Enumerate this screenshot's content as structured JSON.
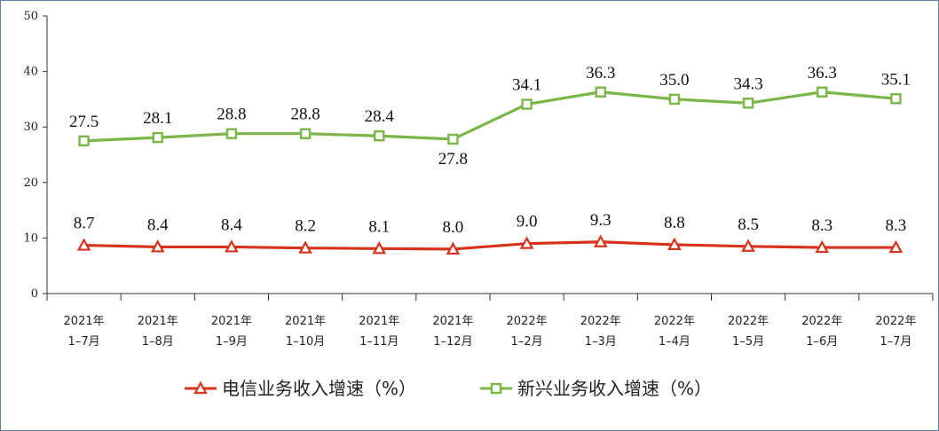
{
  "chart_data": {
    "type": "line",
    "categories": [
      [
        "2021年",
        "1–7月"
      ],
      [
        "2021年",
        "1–8月"
      ],
      [
        "2021年",
        "1–9月"
      ],
      [
        "2021年",
        "1–10月"
      ],
      [
        "2021年",
        "1–11月"
      ],
      [
        "2021年",
        "1–12月"
      ],
      [
        "2022年",
        "1–2月"
      ],
      [
        "2022年",
        "1–3月"
      ],
      [
        "2022年",
        "1–4月"
      ],
      [
        "2022年",
        "1–5月"
      ],
      [
        "2022年",
        "1–6月"
      ],
      [
        "2022年",
        "1–7月"
      ]
    ],
    "series": [
      {
        "name": "电信业务收入增速（%）",
        "color": "#d7321c",
        "marker": "triangle",
        "values": [
          8.7,
          8.4,
          8.4,
          8.2,
          8.1,
          8.0,
          9.0,
          9.3,
          8.8,
          8.5,
          8.3,
          8.3
        ],
        "labels": [
          "8.7",
          "8.4",
          "8.4",
          "8.2",
          "8.1",
          "8.0",
          "9.0",
          "9.3",
          "8.8",
          "8.5",
          "8.3",
          "8.3"
        ]
      },
      {
        "name": "新兴业务收入增速（%）",
        "color": "#7ab648",
        "marker": "square",
        "values": [
          27.5,
          28.1,
          28.8,
          28.8,
          28.4,
          27.8,
          34.1,
          36.3,
          35.0,
          34.3,
          36.3,
          35.1
        ],
        "labels": [
          "27.5",
          "28.1",
          "28.8",
          "28.8",
          "28.4",
          "27.8",
          "34.1",
          "36.3",
          "35.0",
          "34.3",
          "36.3",
          "35.1"
        ]
      }
    ],
    "ylim": [
      0,
      50
    ],
    "yticks": [
      "0",
      "10",
      "20",
      "30",
      "40",
      "50"
    ],
    "grid": false,
    "legend_position": "bottom"
  }
}
